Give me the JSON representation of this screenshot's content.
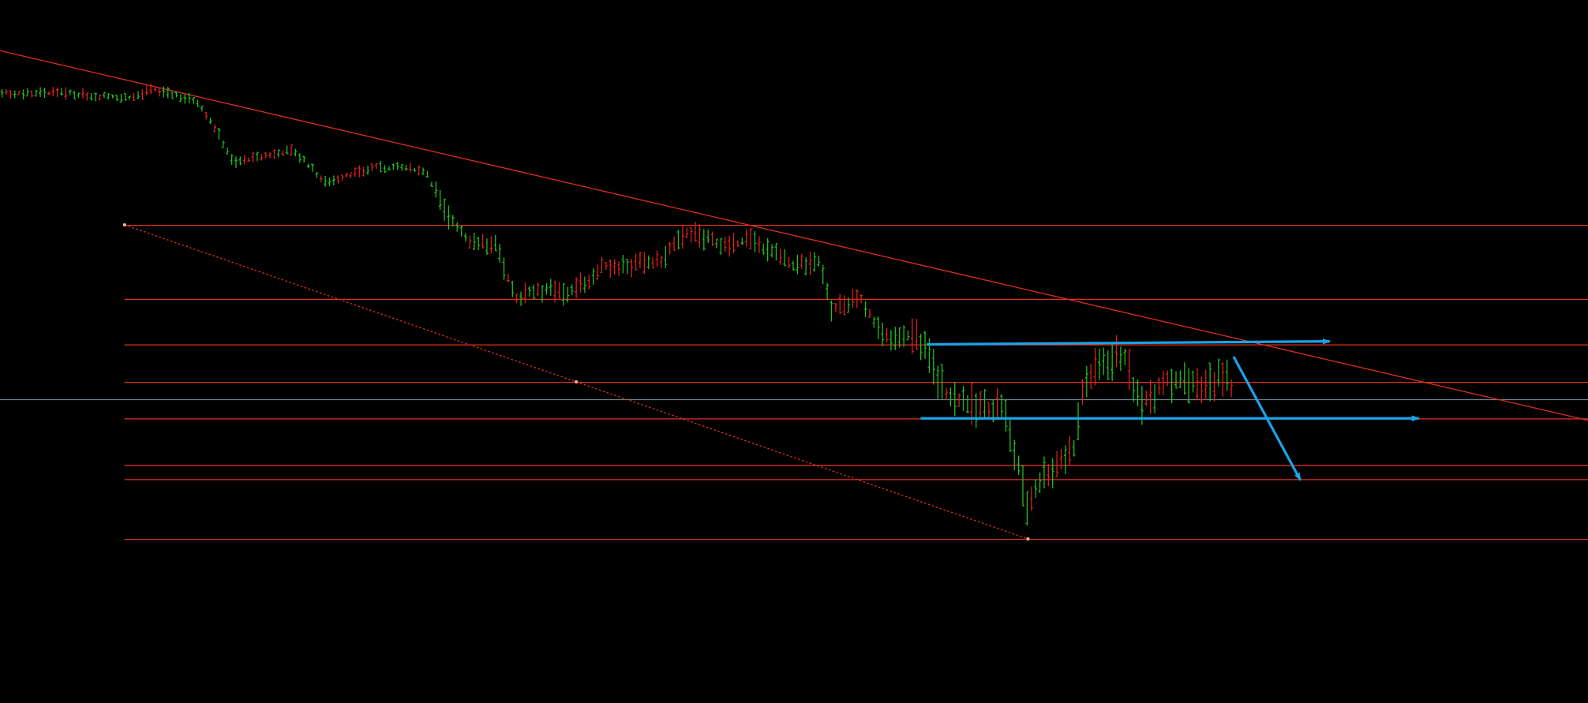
{
  "chart_data": {
    "type": "ohlc"
  }
}
